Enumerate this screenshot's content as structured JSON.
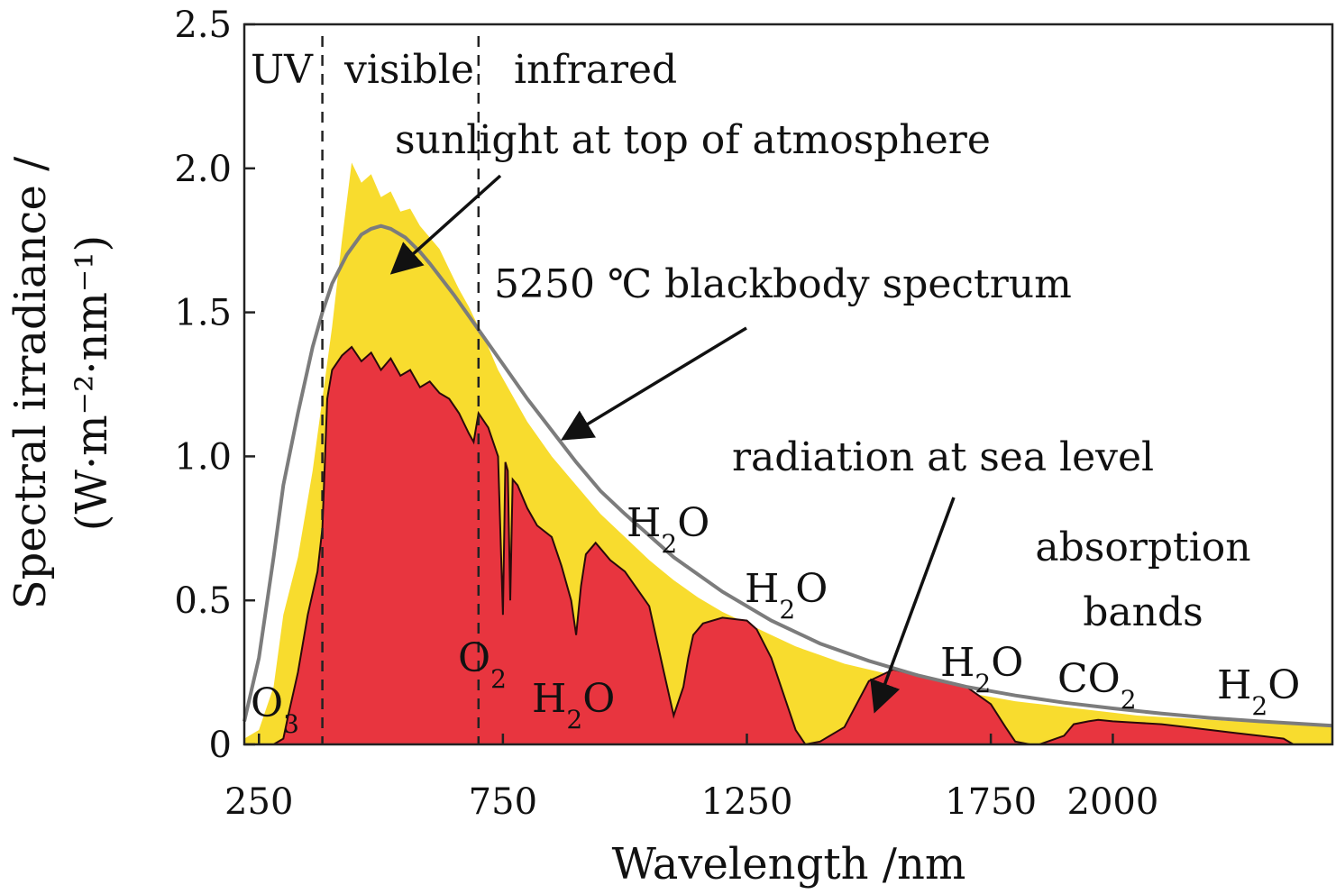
{
  "chart_data": {
    "type": "area",
    "title": "",
    "xlabel": "Wavelength /nm",
    "ylabel_line1": "Spectral irradiance /",
    "ylabel_line2": "(W·m⁻²·nm⁻¹)",
    "xlim": [
      220,
      2450
    ],
    "ylim": [
      0,
      2.5
    ],
    "x_ticks": [
      250,
      750,
      1250,
      1750,
      2000
    ],
    "x_tick_labels": [
      "250",
      "750",
      "1250",
      "1750",
      "2000"
    ],
    "y_ticks": [
      0,
      0.5,
      1.0,
      1.5,
      2.0,
      2.5
    ],
    "y_tick_labels": [
      "0",
      "0.5",
      "1.0",
      "1.5",
      "2.0",
      "2.5"
    ],
    "region_boundaries_nm": [
      380,
      700
    ],
    "region_labels": [
      "UV",
      "visible",
      "infrared"
    ],
    "colors": {
      "top_of_atmosphere": "#f8dc2e",
      "sea_level": "#e8353f",
      "blackbody": "#7c7c7c",
      "outline": "#2a0a0a"
    },
    "series": [
      {
        "name": "sunlight at top of atmosphere",
        "x": [
          220,
          250,
          280,
          300,
          330,
          360,
          380,
          400,
          420,
          440,
          460,
          480,
          500,
          520,
          540,
          560,
          580,
          600,
          620,
          640,
          660,
          680,
          700,
          720,
          740,
          760,
          780,
          800,
          850,
          900,
          950,
          1000,
          1050,
          1100,
          1150,
          1200,
          1250,
          1300,
          1350,
          1400,
          1450,
          1500,
          1550,
          1600,
          1650,
          1700,
          1750,
          1800,
          1850,
          1900,
          1950,
          2000,
          2050,
          2100,
          2150,
          2200,
          2250,
          2300,
          2350,
          2400,
          2450
        ],
        "y": [
          0.02,
          0.05,
          0.2,
          0.45,
          0.65,
          0.95,
          1.2,
          1.45,
          1.75,
          2.02,
          1.95,
          1.98,
          1.9,
          1.92,
          1.85,
          1.86,
          1.8,
          1.76,
          1.72,
          1.65,
          1.58,
          1.52,
          1.45,
          1.38,
          1.3,
          1.24,
          1.18,
          1.12,
          1.0,
          0.9,
          0.8,
          0.72,
          0.64,
          0.57,
          0.51,
          0.46,
          0.42,
          0.38,
          0.34,
          0.31,
          0.28,
          0.26,
          0.24,
          0.22,
          0.2,
          0.18,
          0.165,
          0.15,
          0.14,
          0.13,
          0.12,
          0.11,
          0.1,
          0.095,
          0.09,
          0.085,
          0.08,
          0.075,
          0.07,
          0.065,
          0.06
        ]
      },
      {
        "name": "radiation at sea level",
        "x": [
          280,
          300,
          310,
          330,
          350,
          370,
          380,
          390,
          400,
          420,
          440,
          460,
          480,
          500,
          520,
          540,
          560,
          580,
          600,
          620,
          640,
          660,
          680,
          690,
          700,
          720,
          740,
          750,
          755,
          760,
          765,
          770,
          780,
          800,
          820,
          850,
          870,
          890,
          900,
          910,
          920,
          930,
          940,
          950,
          970,
          1000,
          1050,
          1080,
          1100,
          1120,
          1130,
          1140,
          1160,
          1200,
          1250,
          1270,
          1300,
          1330,
          1350,
          1370,
          1400,
          1450,
          1500,
          1550,
          1600,
          1650,
          1700,
          1750,
          1780,
          1800,
          1830,
          1850,
          1900,
          1920,
          1950,
          1970,
          2000,
          2050,
          2100,
          2150,
          2200,
          2250,
          2300,
          2350,
          2370,
          2400,
          2450
        ],
        "y": [
          0,
          0.02,
          0.1,
          0.25,
          0.45,
          0.6,
          0.75,
          1.2,
          1.3,
          1.35,
          1.38,
          1.33,
          1.36,
          1.3,
          1.34,
          1.28,
          1.3,
          1.24,
          1.26,
          1.22,
          1.2,
          1.15,
          1.08,
          1.05,
          1.15,
          1.1,
          1.0,
          0.45,
          0.98,
          0.95,
          0.5,
          0.92,
          0.9,
          0.82,
          0.76,
          0.72,
          0.62,
          0.5,
          0.38,
          0.55,
          0.66,
          0.68,
          0.7,
          0.68,
          0.64,
          0.6,
          0.48,
          0.25,
          0.1,
          0.2,
          0.3,
          0.38,
          0.42,
          0.44,
          0.43,
          0.4,
          0.3,
          0.15,
          0.05,
          0.0,
          0.01,
          0.06,
          0.22,
          0.26,
          0.24,
          0.22,
          0.2,
          0.14,
          0.06,
          0.01,
          0.0,
          0.0,
          0.03,
          0.07,
          0.08,
          0.085,
          0.08,
          0.075,
          0.07,
          0.06,
          0.05,
          0.04,
          0.03,
          0.02,
          0.0,
          0.0,
          0.0
        ]
      },
      {
        "name": "5250 ℃ blackbody spectrum",
        "x": [
          220,
          250,
          280,
          300,
          330,
          360,
          380,
          400,
          430,
          460,
          480,
          500,
          520,
          550,
          580,
          600,
          650,
          700,
          750,
          800,
          850,
          900,
          950,
          1000,
          1100,
          1200,
          1300,
          1400,
          1500,
          1600,
          1700,
          1800,
          1900,
          2000,
          2100,
          2200,
          2300,
          2400,
          2450
        ],
        "y": [
          0.08,
          0.3,
          0.65,
          0.9,
          1.15,
          1.38,
          1.5,
          1.6,
          1.7,
          1.77,
          1.79,
          1.8,
          1.79,
          1.76,
          1.71,
          1.67,
          1.56,
          1.44,
          1.32,
          1.2,
          1.09,
          0.98,
          0.88,
          0.8,
          0.65,
          0.53,
          0.43,
          0.35,
          0.29,
          0.24,
          0.2,
          0.17,
          0.145,
          0.125,
          0.107,
          0.092,
          0.08,
          0.07,
          0.065
        ]
      }
    ],
    "annotations": {
      "uv": "UV",
      "visible": "visible",
      "infrared": "infrared",
      "sunlight": "sunlight at top of atmosphere",
      "blackbody": "5250 ℃ blackbody spectrum",
      "sea_level": "radiation at sea level",
      "absorption_line1": "absorption",
      "absorption_line2": "bands"
    },
    "molecules": [
      {
        "base": "O",
        "sub": "3"
      },
      {
        "base": "O",
        "sub": "2"
      },
      {
        "base": "H",
        "sub": "2",
        "tail": "O"
      },
      {
        "base": "H",
        "sub": "2",
        "tail": "O"
      },
      {
        "base": "H",
        "sub": "2",
        "tail": "O"
      },
      {
        "base": "H",
        "sub": "2",
        "tail": "O"
      },
      {
        "base": "CO",
        "sub": "2"
      },
      {
        "base": "H",
        "sub": "2",
        "tail": "O"
      }
    ]
  }
}
